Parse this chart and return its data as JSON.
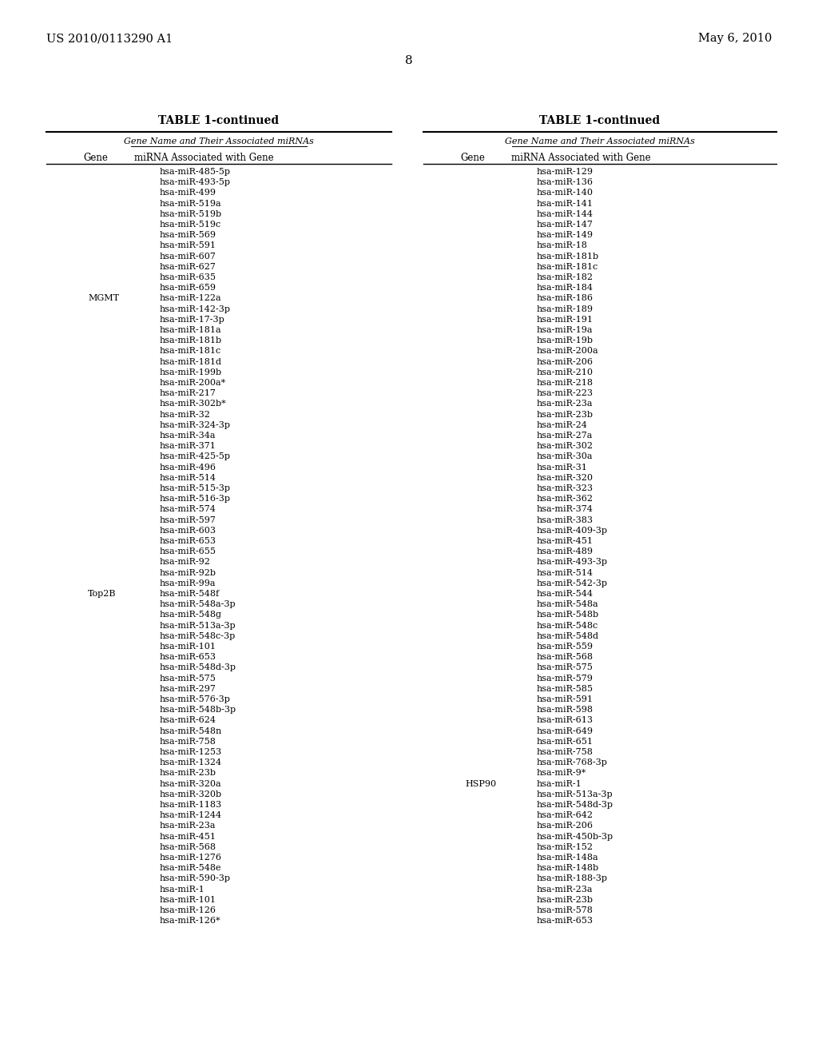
{
  "header_left": "US 2010/0113290 A1",
  "header_right": "May 6, 2010",
  "page_number": "8",
  "table_title": "TABLE 1-continued",
  "group_header": "Gene Name and Their Associated miRNAs",
  "col1_header": "Gene",
  "col2_header": "miRNA Associated with Gene",
  "left_table": {
    "rows": [
      {
        "gene": "",
        "mirna": "hsa-miR-485-5p"
      },
      {
        "gene": "",
        "mirna": "hsa-miR-493-5p"
      },
      {
        "gene": "",
        "mirna": "hsa-miR-499"
      },
      {
        "gene": "",
        "mirna": "hsa-miR-519a"
      },
      {
        "gene": "",
        "mirna": "hsa-miR-519b"
      },
      {
        "gene": "",
        "mirna": "hsa-miR-519c"
      },
      {
        "gene": "",
        "mirna": "hsa-miR-569"
      },
      {
        "gene": "",
        "mirna": "hsa-miR-591"
      },
      {
        "gene": "",
        "mirna": "hsa-miR-607"
      },
      {
        "gene": "",
        "mirna": "hsa-miR-627"
      },
      {
        "gene": "",
        "mirna": "hsa-miR-635"
      },
      {
        "gene": "",
        "mirna": "hsa-miR-659"
      },
      {
        "gene": "MGMT",
        "mirna": "hsa-miR-122a"
      },
      {
        "gene": "",
        "mirna": "hsa-miR-142-3p"
      },
      {
        "gene": "",
        "mirna": "hsa-miR-17-3p"
      },
      {
        "gene": "",
        "mirna": "hsa-miR-181a"
      },
      {
        "gene": "",
        "mirna": "hsa-miR-181b"
      },
      {
        "gene": "",
        "mirna": "hsa-miR-181c"
      },
      {
        "gene": "",
        "mirna": "hsa-miR-181d"
      },
      {
        "gene": "",
        "mirna": "hsa-miR-199b"
      },
      {
        "gene": "",
        "mirna": "hsa-miR-200a*"
      },
      {
        "gene": "",
        "mirna": "hsa-miR-217"
      },
      {
        "gene": "",
        "mirna": "hsa-miR-302b*"
      },
      {
        "gene": "",
        "mirna": "hsa-miR-32"
      },
      {
        "gene": "",
        "mirna": "hsa-miR-324-3p"
      },
      {
        "gene": "",
        "mirna": "hsa-miR-34a"
      },
      {
        "gene": "",
        "mirna": "hsa-miR-371"
      },
      {
        "gene": "",
        "mirna": "hsa-miR-425-5p"
      },
      {
        "gene": "",
        "mirna": "hsa-miR-496"
      },
      {
        "gene": "",
        "mirna": "hsa-miR-514"
      },
      {
        "gene": "",
        "mirna": "hsa-miR-515-3p"
      },
      {
        "gene": "",
        "mirna": "hsa-miR-516-3p"
      },
      {
        "gene": "",
        "mirna": "hsa-miR-574"
      },
      {
        "gene": "",
        "mirna": "hsa-miR-597"
      },
      {
        "gene": "",
        "mirna": "hsa-miR-603"
      },
      {
        "gene": "",
        "mirna": "hsa-miR-653"
      },
      {
        "gene": "",
        "mirna": "hsa-miR-655"
      },
      {
        "gene": "",
        "mirna": "hsa-miR-92"
      },
      {
        "gene": "",
        "mirna": "hsa-miR-92b"
      },
      {
        "gene": "",
        "mirna": "hsa-miR-99a"
      },
      {
        "gene": "Top2B",
        "mirna": "hsa-miR-548f"
      },
      {
        "gene": "",
        "mirna": "hsa-miR-548a-3p"
      },
      {
        "gene": "",
        "mirna": "hsa-miR-548g"
      },
      {
        "gene": "",
        "mirna": "hsa-miR-513a-3p"
      },
      {
        "gene": "",
        "mirna": "hsa-miR-548c-3p"
      },
      {
        "gene": "",
        "mirna": "hsa-miR-101"
      },
      {
        "gene": "",
        "mirna": "hsa-miR-653"
      },
      {
        "gene": "",
        "mirna": "hsa-miR-548d-3p"
      },
      {
        "gene": "",
        "mirna": "hsa-miR-575"
      },
      {
        "gene": "",
        "mirna": "hsa-miR-297"
      },
      {
        "gene": "",
        "mirna": "hsa-miR-576-3p"
      },
      {
        "gene": "",
        "mirna": "hsa-miR-548b-3p"
      },
      {
        "gene": "",
        "mirna": "hsa-miR-624"
      },
      {
        "gene": "",
        "mirna": "hsa-miR-548n"
      },
      {
        "gene": "",
        "mirna": "hsa-miR-758"
      },
      {
        "gene": "",
        "mirna": "hsa-miR-1253"
      },
      {
        "gene": "",
        "mirna": "hsa-miR-1324"
      },
      {
        "gene": "",
        "mirna": "hsa-miR-23b"
      },
      {
        "gene": "",
        "mirna": "hsa-miR-320a"
      },
      {
        "gene": "",
        "mirna": "hsa-miR-320b"
      },
      {
        "gene": "",
        "mirna": "hsa-miR-1183"
      },
      {
        "gene": "",
        "mirna": "hsa-miR-1244"
      },
      {
        "gene": "",
        "mirna": "hsa-miR-23a"
      },
      {
        "gene": "",
        "mirna": "hsa-miR-451"
      },
      {
        "gene": "",
        "mirna": "hsa-miR-568"
      },
      {
        "gene": "",
        "mirna": "hsa-miR-1276"
      },
      {
        "gene": "",
        "mirna": "hsa-miR-548e"
      },
      {
        "gene": "",
        "mirna": "hsa-miR-590-3p"
      },
      {
        "gene": "",
        "mirna": "hsa-miR-1"
      },
      {
        "gene": "",
        "mirna": "hsa-miR-101"
      },
      {
        "gene": "",
        "mirna": "hsa-miR-126"
      },
      {
        "gene": "",
        "mirna": "hsa-miR-126*"
      }
    ]
  },
  "right_table": {
    "rows": [
      {
        "gene": "",
        "mirna": "hsa-miR-129"
      },
      {
        "gene": "",
        "mirna": "hsa-miR-136"
      },
      {
        "gene": "",
        "mirna": "hsa-miR-140"
      },
      {
        "gene": "",
        "mirna": "hsa-miR-141"
      },
      {
        "gene": "",
        "mirna": "hsa-miR-144"
      },
      {
        "gene": "",
        "mirna": "hsa-miR-147"
      },
      {
        "gene": "",
        "mirna": "hsa-miR-149"
      },
      {
        "gene": "",
        "mirna": "hsa-miR-18"
      },
      {
        "gene": "",
        "mirna": "hsa-miR-181b"
      },
      {
        "gene": "",
        "mirna": "hsa-miR-181c"
      },
      {
        "gene": "",
        "mirna": "hsa-miR-182"
      },
      {
        "gene": "",
        "mirna": "hsa-miR-184"
      },
      {
        "gene": "",
        "mirna": "hsa-miR-186"
      },
      {
        "gene": "",
        "mirna": "hsa-miR-189"
      },
      {
        "gene": "",
        "mirna": "hsa-miR-191"
      },
      {
        "gene": "",
        "mirna": "hsa-miR-19a"
      },
      {
        "gene": "",
        "mirna": "hsa-miR-19b"
      },
      {
        "gene": "",
        "mirna": "hsa-miR-200a"
      },
      {
        "gene": "",
        "mirna": "hsa-miR-206"
      },
      {
        "gene": "",
        "mirna": "hsa-miR-210"
      },
      {
        "gene": "",
        "mirna": "hsa-miR-218"
      },
      {
        "gene": "",
        "mirna": "hsa-miR-223"
      },
      {
        "gene": "",
        "mirna": "hsa-miR-23a"
      },
      {
        "gene": "",
        "mirna": "hsa-miR-23b"
      },
      {
        "gene": "",
        "mirna": "hsa-miR-24"
      },
      {
        "gene": "",
        "mirna": "hsa-miR-27a"
      },
      {
        "gene": "",
        "mirna": "hsa-miR-302"
      },
      {
        "gene": "",
        "mirna": "hsa-miR-30a"
      },
      {
        "gene": "",
        "mirna": "hsa-miR-31"
      },
      {
        "gene": "",
        "mirna": "hsa-miR-320"
      },
      {
        "gene": "",
        "mirna": "hsa-miR-323"
      },
      {
        "gene": "",
        "mirna": "hsa-miR-362"
      },
      {
        "gene": "",
        "mirna": "hsa-miR-374"
      },
      {
        "gene": "",
        "mirna": "hsa-miR-383"
      },
      {
        "gene": "",
        "mirna": "hsa-miR-409-3p"
      },
      {
        "gene": "",
        "mirna": "hsa-miR-451"
      },
      {
        "gene": "",
        "mirna": "hsa-miR-489"
      },
      {
        "gene": "",
        "mirna": "hsa-miR-493-3p"
      },
      {
        "gene": "",
        "mirna": "hsa-miR-514"
      },
      {
        "gene": "",
        "mirna": "hsa-miR-542-3p"
      },
      {
        "gene": "",
        "mirna": "hsa-miR-544"
      },
      {
        "gene": "",
        "mirna": "hsa-miR-548a"
      },
      {
        "gene": "",
        "mirna": "hsa-miR-548b"
      },
      {
        "gene": "",
        "mirna": "hsa-miR-548c"
      },
      {
        "gene": "",
        "mirna": "hsa-miR-548d"
      },
      {
        "gene": "",
        "mirna": "hsa-miR-559"
      },
      {
        "gene": "",
        "mirna": "hsa-miR-568"
      },
      {
        "gene": "",
        "mirna": "hsa-miR-575"
      },
      {
        "gene": "",
        "mirna": "hsa-miR-579"
      },
      {
        "gene": "",
        "mirna": "hsa-miR-585"
      },
      {
        "gene": "",
        "mirna": "hsa-miR-591"
      },
      {
        "gene": "",
        "mirna": "hsa-miR-598"
      },
      {
        "gene": "",
        "mirna": "hsa-miR-613"
      },
      {
        "gene": "",
        "mirna": "hsa-miR-649"
      },
      {
        "gene": "",
        "mirna": "hsa-miR-651"
      },
      {
        "gene": "",
        "mirna": "hsa-miR-758"
      },
      {
        "gene": "",
        "mirna": "hsa-miR-768-3p"
      },
      {
        "gene": "",
        "mirna": "hsa-miR-9*"
      },
      {
        "gene": "HSP90",
        "mirna": "hsa-miR-1"
      },
      {
        "gene": "",
        "mirna": "hsa-miR-513a-3p"
      },
      {
        "gene": "",
        "mirna": "hsa-miR-548d-3p"
      },
      {
        "gene": "",
        "mirna": "hsa-miR-642"
      },
      {
        "gene": "",
        "mirna": "hsa-miR-206"
      },
      {
        "gene": "",
        "mirna": "hsa-miR-450b-3p"
      },
      {
        "gene": "",
        "mirna": "hsa-miR-152"
      },
      {
        "gene": "",
        "mirna": "hsa-miR-148a"
      },
      {
        "gene": "",
        "mirna": "hsa-miR-148b"
      },
      {
        "gene": "",
        "mirna": "hsa-miR-188-3p"
      },
      {
        "gene": "",
        "mirna": "hsa-miR-23a"
      },
      {
        "gene": "",
        "mirna": "hsa-miR-23b"
      },
      {
        "gene": "",
        "mirna": "hsa-miR-578"
      },
      {
        "gene": "",
        "mirna": "hsa-miR-653"
      }
    ]
  }
}
